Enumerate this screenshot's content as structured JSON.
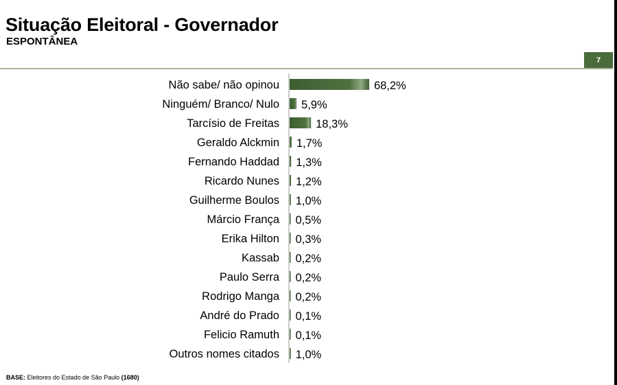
{
  "header": {
    "title": "Situação Eleitoral - Governador",
    "subtitle": "ESPONTÂNEA",
    "page_number": "7"
  },
  "footer": {
    "base_label": "BASE:",
    "base_text": "Eleitores do Estado de São Paulo",
    "base_count": "(1680)"
  },
  "colors": {
    "bar": "#4a6b3a",
    "accent": "#4a6b3a",
    "rule": "#a7b89a"
  },
  "chart_data": {
    "type": "bar",
    "orientation": "horizontal",
    "categories": [
      "Não sabe/ não opinou",
      "Ninguém/ Branco/ Nulo",
      "Tarcísio de Freitas",
      "Geraldo Alckmin",
      "Fernando Haddad",
      "Ricardo Nunes",
      "Guilherme Boulos",
      "Márcio França",
      "Erika Hilton",
      "Kassab",
      "Paulo Serra",
      "Rodrigo Manga",
      "André do Prado",
      "Felicio Ramuth",
      "Outros nomes citados"
    ],
    "values": [
      68.2,
      5.9,
      18.3,
      1.7,
      1.3,
      1.2,
      1.0,
      0.5,
      0.3,
      0.2,
      0.2,
      0.2,
      0.1,
      0.1,
      1.0
    ],
    "value_labels": [
      "68,2%",
      "5,9%",
      "18,3%",
      "1,7%",
      "1,3%",
      "1,2%",
      "1,0%",
      "0,5%",
      "0,3%",
      "0,2%",
      "0,2%",
      "0,2%",
      "0,1%",
      "0,1%",
      "1,0%"
    ],
    "xlim": [
      0,
      100
    ],
    "grid": false,
    "legend": "none"
  }
}
